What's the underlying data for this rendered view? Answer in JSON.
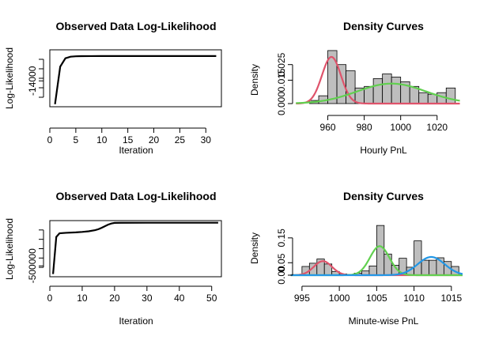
{
  "chart_data": [
    {
      "type": "line",
      "title": "Observed Data Log-Likelihood",
      "xlabel": "Iteration",
      "ylabel": "Log-Likelihood",
      "xlim": [
        0,
        33
      ],
      "ylim": [
        -16000,
        -11600
      ],
      "xticks": [
        0,
        5,
        10,
        15,
        20,
        25,
        30
      ],
      "yticks": [
        -14000
      ],
      "x": [
        1,
        2,
        3,
        4,
        5,
        6,
        8,
        10,
        15,
        20,
        25,
        30,
        32
      ],
      "y": [
        -15800,
        -12900,
        -12250,
        -12130,
        -12100,
        -12090,
        -12085,
        -12083,
        -12082,
        -12082,
        -12082,
        -12082,
        -12082
      ],
      "color": "#000000"
    },
    {
      "type": "histogram",
      "title": "Density Curves",
      "xlabel": "Hourly PnL",
      "ylabel": "Density",
      "xlim": [
        945,
        1034
      ],
      "ylim": [
        0,
        0.036
      ],
      "xticks": [
        960,
        980,
        1000,
        1020
      ],
      "yticks": [
        0.0,
        0.015,
        0.025
      ],
      "ytick_labels": [
        "0.000",
        "0.015",
        "0.025"
      ],
      "bins": [
        950,
        955,
        960,
        965,
        970,
        975,
        980,
        985,
        990,
        995,
        1000,
        1005,
        1010,
        1015,
        1020,
        1025,
        1030
      ],
      "density": [
        0.002,
        0.005,
        0.034,
        0.025,
        0.021,
        0.01,
        0.011,
        0.016,
        0.019,
        0.017,
        0.014,
        0.011,
        0.007,
        0.006,
        0.007,
        0.01
      ],
      "bar_color": "#bebebe",
      "series": [
        {
          "color": "#df536b",
          "mean": 962,
          "sd": 5.2,
          "weight": 0.39
        },
        {
          "color": "#61d04f",
          "mean": 995,
          "sd": 19,
          "weight": 0.61
        }
      ]
    },
    {
      "type": "line",
      "title": "Observed Data Log-Likelihood",
      "xlabel": "Iteration",
      "ylabel": "Log-Likelihood",
      "xlim": [
        0,
        53
      ],
      "ylim": [
        -620000,
        0
      ],
      "xticks": [
        0,
        10,
        20,
        30,
        40,
        50
      ],
      "yticks": [
        -500000
      ],
      "x": [
        1,
        2,
        3,
        5,
        8,
        10,
        12,
        14,
        15,
        16,
        17,
        18,
        19,
        20,
        22,
        30,
        40,
        52
      ],
      "y": [
        -590000,
        -180000,
        -140000,
        -135000,
        -130000,
        -125000,
        -118000,
        -105000,
        -95000,
        -80000,
        -62000,
        -45000,
        -32000,
        -25000,
        -24000,
        -23500,
        -23500,
        -23500
      ],
      "color": "#000000"
    },
    {
      "type": "histogram",
      "title": "Density Curves",
      "xlabel": "Minute-wise PnL",
      "ylabel": "Density",
      "xlim": [
        994.8,
        1016.5
      ],
      "ylim": [
        0,
        0.21
      ],
      "xticks": [
        995,
        1000,
        1005,
        1010,
        1015
      ],
      "yticks": [
        0.0,
        0.05,
        0.15
      ],
      "ytick_labels": [
        "0.00",
        "0.05",
        "0.15"
      ],
      "bins": [
        995,
        996,
        997,
        998,
        999,
        1000,
        1001,
        1002,
        1003,
        1004,
        1005,
        1006,
        1007,
        1008,
        1009,
        1010,
        1011,
        1012,
        1013,
        1014,
        1015,
        1016
      ],
      "density": [
        0.035,
        0.048,
        0.065,
        0.045,
        0.015,
        0.005,
        0.003,
        0.008,
        0.017,
        0.037,
        0.2,
        0.085,
        0.04,
        0.068,
        0.032,
        0.138,
        0.06,
        0.06,
        0.07,
        0.055,
        0.035
      ],
      "bar_color": "#bebebe",
      "series": [
        {
          "color": "#df536b",
          "mean": 997.8,
          "sd": 1.2,
          "weight": 0.17
        },
        {
          "color": "#61d04f",
          "mean": 1005.4,
          "sd": 1.3,
          "weight": 0.38
        },
        {
          "color": "#2297e6",
          "mean": 1012.3,
          "sd": 1.8,
          "weight": 0.33
        }
      ]
    }
  ]
}
